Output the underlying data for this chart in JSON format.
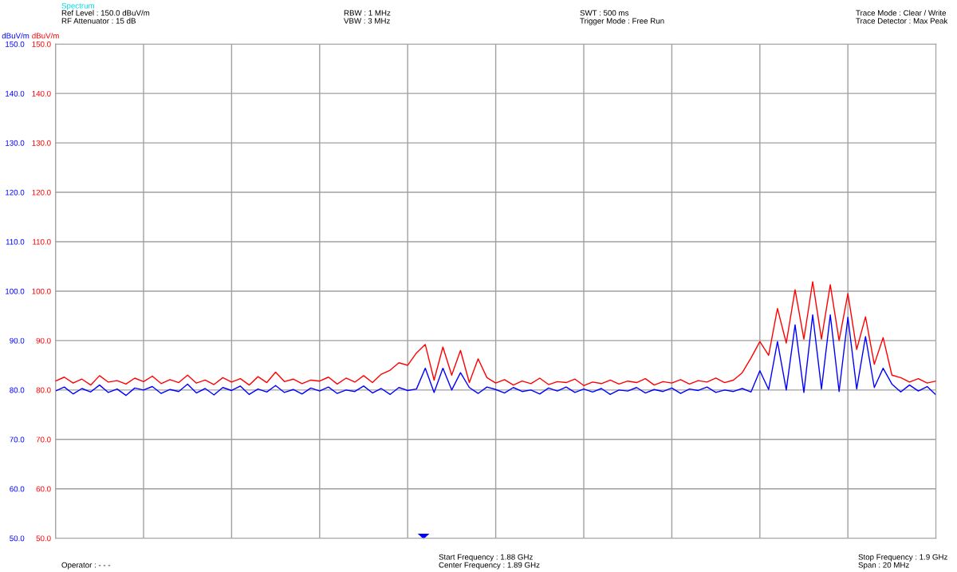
{
  "chart_data": {
    "type": "line",
    "ylabel": "dBuV/m",
    "y2label": "dBuV/m",
    "annotations": [
      "Spectrum",
      "Ref Level : 150.0 dBuV/m",
      "RF Attenuator : 15 dB",
      "RBW : 1 MHz",
      "VBW : 3 MHz",
      "SWT : 500 ms",
      "Trigger Mode : Free Run",
      "Trace Mode : Clear / Write",
      "Trace Detector : Max Peak",
      "Start Frequency : 1.88 GHz",
      "Center Frequency : 1.89 GHz",
      "Stop Frequency : 1.9 GHz",
      "Span : 20 MHz",
      "Operator : - - -"
    ],
    "categories": [
      null,
      null,
      null,
      null,
      null,
      null,
      null,
      null,
      null,
      null,
      null,
      null,
      null,
      null,
      null,
      null,
      null,
      null,
      null,
      null,
      null,
      null,
      null,
      null,
      null,
      null,
      null,
      null,
      null,
      null,
      null,
      null,
      null,
      null,
      null,
      null,
      null,
      null,
      null,
      null,
      null,
      null,
      null,
      null,
      null,
      null,
      null,
      null,
      null,
      null,
      null,
      null,
      null,
      null,
      null,
      null,
      null,
      null,
      null,
      null,
      null,
      null,
      null,
      null,
      null,
      null,
      null,
      null,
      null,
      null,
      null,
      null,
      null,
      null,
      null,
      null,
      null,
      null,
      null,
      null,
      null,
      null,
      null,
      null,
      null,
      null,
      null,
      null,
      null,
      null,
      null,
      null,
      null,
      null,
      null,
      null,
      null,
      null,
      null,
      null,
      null
    ],
    "ylim": [
      50,
      150
    ],
    "yticks": [
      {
        "value": 50,
        "label": "50.0"
      },
      {
        "value": 60,
        "label": "60.0"
      },
      {
        "value": 70,
        "label": "70.0"
      },
      {
        "value": 80,
        "label": "80.0"
      },
      {
        "value": 90,
        "label": "90.0"
      },
      {
        "value": 100,
        "label": "100.0"
      },
      {
        "value": 110,
        "label": "110.0"
      },
      {
        "value": 120,
        "label": "120.0"
      },
      {
        "value": 130,
        "label": "130.0"
      },
      {
        "value": 140,
        "label": "140.0"
      },
      {
        "value": 150,
        "label": "150.0"
      }
    ],
    "y2lim": [
      50,
      150
    ],
    "y2ticks": [
      {
        "value": 50,
        "label": "50.0"
      },
      {
        "value": 60,
        "label": "60.0"
      },
      {
        "value": 70,
        "label": "70.0"
      },
      {
        "value": 80,
        "label": "80.0"
      },
      {
        "value": 90,
        "label": "90.0"
      },
      {
        "value": 100,
        "label": "100.0"
      },
      {
        "value": 110,
        "label": "110.0"
      },
      {
        "value": 120,
        "label": "120.0"
      },
      {
        "value": 130,
        "label": "130.0"
      },
      {
        "value": 140,
        "label": "140.0"
      },
      {
        "value": 150,
        "label": "150.0"
      }
    ],
    "grid": true,
    "legend": false,
    "marker": "none",
    "line_style": "solid",
    "series": [
      {
        "color": "#ff0000",
        "axis": "y2",
        "values": [
          81.8,
          82.6,
          81.4,
          82.2,
          81.0,
          82.9,
          81.6,
          81.9,
          81.2,
          82.4,
          81.7,
          82.8,
          81.3,
          82.1,
          81.5,
          83.0,
          81.4,
          82.0,
          81.1,
          82.5,
          81.6,
          82.3,
          81.0,
          82.7,
          81.5,
          83.6,
          81.7,
          82.2,
          81.3,
          82.0,
          81.8,
          82.6,
          81.2,
          82.4,
          81.6,
          82.9,
          81.5,
          83.2,
          84.0,
          85.5,
          85.0,
          87.5,
          89.2,
          82.0,
          88.7,
          83.0,
          88.0,
          81.5,
          86.3,
          82.5,
          81.4,
          82.1,
          81.0,
          81.8,
          81.3,
          82.4,
          81.1,
          81.7,
          81.5,
          82.2,
          80.9,
          81.6,
          81.3,
          82.0,
          81.2,
          81.8,
          81.5,
          82.3,
          81.0,
          81.7,
          81.4,
          82.1,
          81.2,
          81.9,
          81.6,
          82.4,
          81.5,
          82.0,
          83.5,
          86.5,
          89.8,
          87.0,
          96.5,
          89.5,
          100.3,
          90.3,
          101.9,
          90.3,
          101.3,
          90.0,
          99.5,
          88.2,
          94.8,
          85.2,
          90.6,
          83.0,
          82.5,
          81.6,
          82.3,
          81.4,
          81.8
        ]
      },
      {
        "color": "#0000ff",
        "axis": "y",
        "values": [
          79.8,
          80.6,
          79.2,
          80.3,
          79.6,
          81.0,
          79.5,
          80.2,
          78.9,
          80.4,
          80.0,
          80.7,
          79.3,
          80.1,
          79.7,
          81.2,
          79.4,
          80.3,
          79.0,
          80.5,
          79.9,
          80.8,
          79.1,
          80.2,
          79.6,
          80.9,
          79.5,
          80.1,
          79.2,
          80.4,
          79.8,
          80.6,
          79.3,
          80.0,
          79.7,
          80.8,
          79.4,
          80.3,
          79.1,
          80.5,
          79.9,
          80.2,
          84.4,
          79.5,
          84.4,
          80.0,
          83.5,
          80.5,
          79.3,
          80.6,
          80.1,
          79.4,
          80.5,
          79.7,
          80.0,
          79.2,
          80.4,
          79.8,
          80.6,
          79.5,
          80.2,
          79.6,
          80.3,
          79.1,
          80.0,
          79.8,
          80.5,
          79.4,
          80.1,
          79.7,
          80.4,
          79.3,
          80.2,
          79.9,
          80.6,
          79.5,
          80.0,
          79.7,
          80.3,
          79.6,
          83.9,
          80.1,
          89.8,
          80.0,
          93.2,
          79.5,
          95.2,
          80.2,
          95.2,
          79.7,
          94.7,
          80.2,
          90.8,
          80.5,
          84.4,
          81.2,
          79.6,
          81.0,
          79.8,
          80.7,
          79.0
        ]
      }
    ]
  }
}
